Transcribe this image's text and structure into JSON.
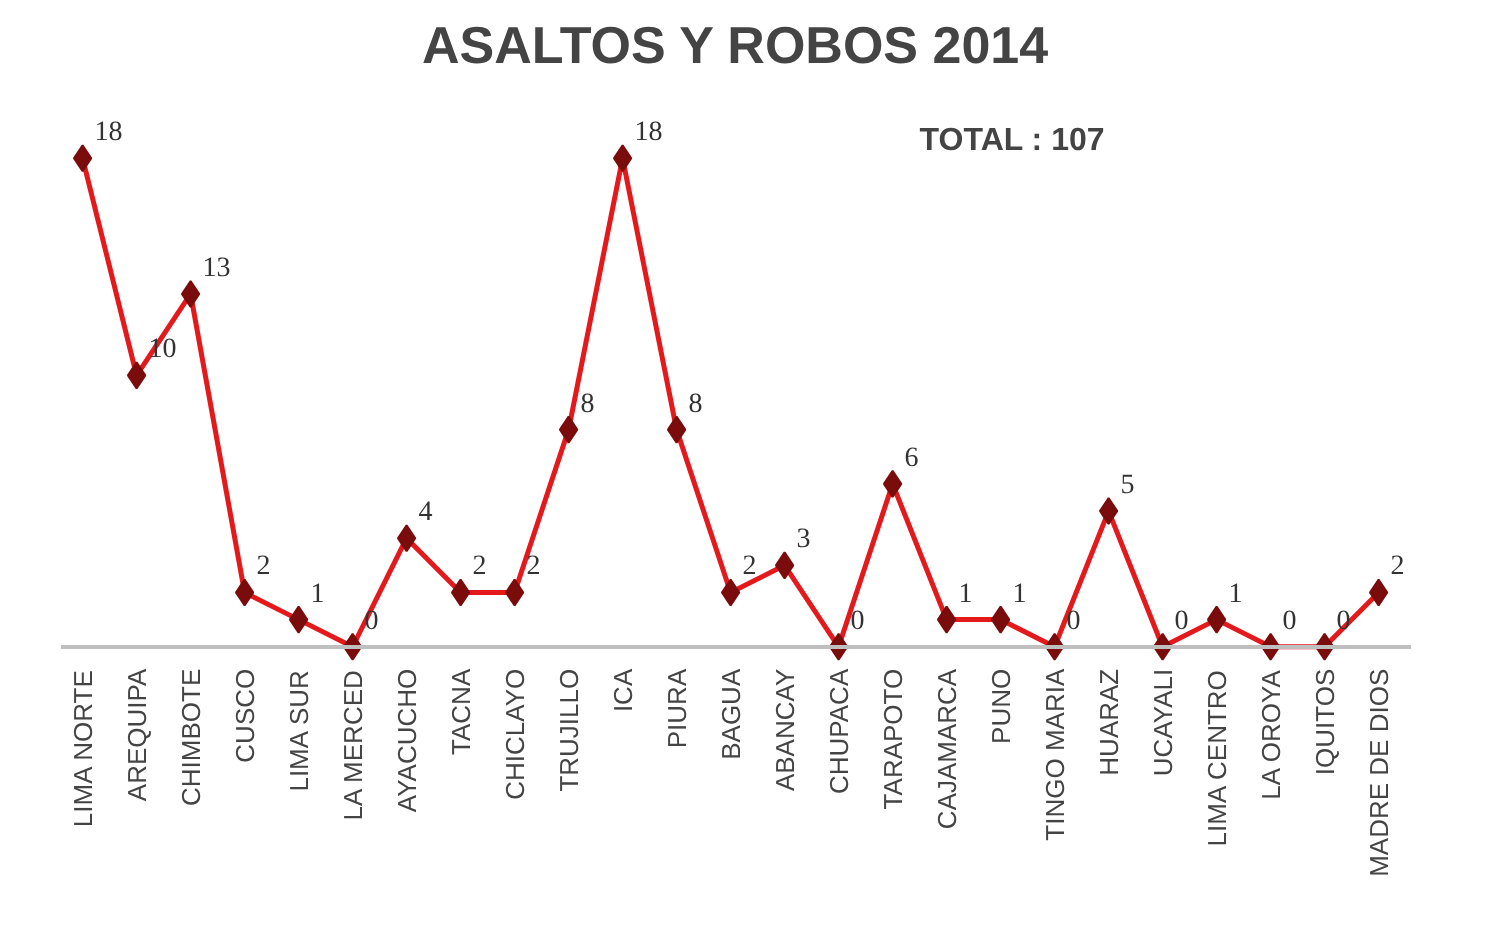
{
  "chart_data": {
    "type": "line",
    "title": "ASALTOS Y ROBOS 2014",
    "categories": [
      "LIMA NORTE",
      "AREQUIPA",
      "CHIMBOTE",
      "CUSCO",
      "LIMA SUR",
      "LA MERCED",
      "AYACUCHO",
      "TACNA",
      "CHICLAYO",
      "TRUJILLO",
      "ICA",
      "PIURA",
      "BAGUA",
      "ABANCAY",
      "CHUPACA",
      "TARAPOTO",
      "CAJAMARCA",
      "PUNO",
      "TINGO MARIA",
      "HUARAZ",
      "UCAYALI",
      "LIMA CENTRO",
      "LA OROYA",
      "IQUITOS",
      "MADRE DE DIOS"
    ],
    "series": [
      {
        "color": "#e3191c",
        "values": [
          18,
          10,
          13,
          2,
          1,
          0,
          4,
          2,
          2,
          8,
          18,
          8,
          2,
          3,
          0,
          6,
          1,
          1,
          0,
          5,
          0,
          1,
          0,
          0,
          2
        ]
      }
    ],
    "data_labels": true,
    "marker": "diamond",
    "line_style": "solid",
    "annotations": [
      "TOTAL : 107"
    ]
  }
}
